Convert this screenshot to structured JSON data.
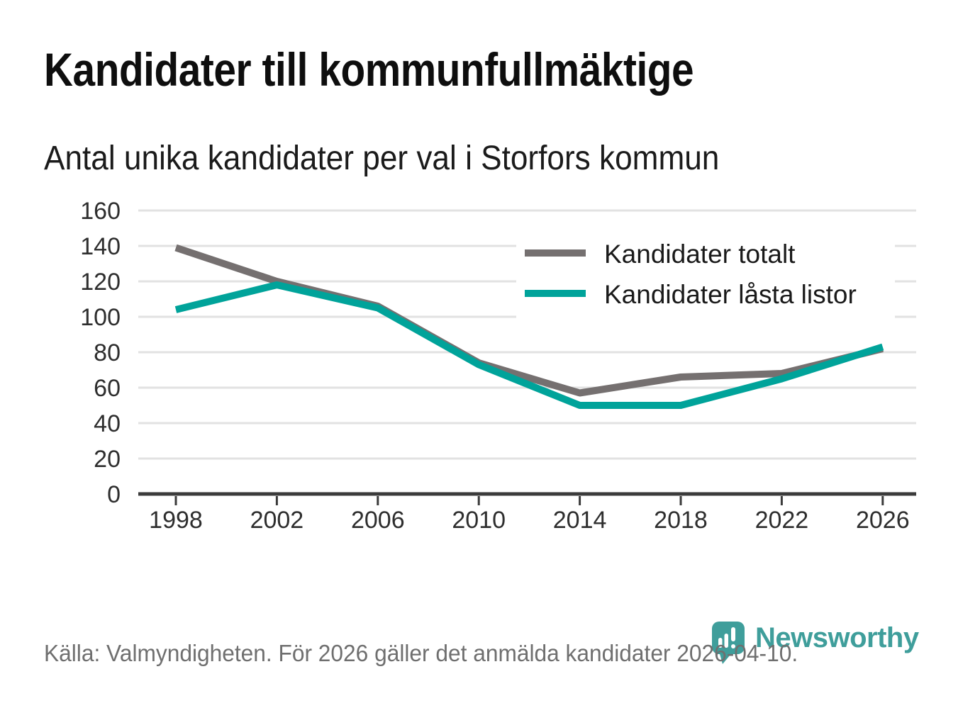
{
  "header": {
    "title": "Kandidater till kommunfullmäktige",
    "subtitle": "Antal unika kandidater per val i Storfors kommun"
  },
  "footer": {
    "source_text": "Källa: Valmyndigheten. För 2026 gäller det anmälda kandidater 2026-04-10.",
    "brand": "Newsworthy"
  },
  "colors": {
    "series_total": "#757070",
    "series_locked": "#00a39a",
    "grid": "#e2e2e2",
    "axis": "#3b3b3b",
    "tick_label": "#2e2e2e",
    "legend_text": "#1a1a1a",
    "brand_teal": "#3f9e9b",
    "footer_gray": "#6f6f6f"
  },
  "chart_data": {
    "type": "line",
    "categories": [
      "1998",
      "2002",
      "2006",
      "2010",
      "2014",
      "2018",
      "2022",
      "2026"
    ],
    "series": [
      {
        "name": "Kandidater totalt",
        "color": "#757070",
        "values": [
          139,
          120,
          106,
          74,
          57,
          66,
          68,
          82
        ]
      },
      {
        "name": "Kandidater låsta listor",
        "color": "#00a39a",
        "values": [
          104,
          118,
          105,
          73,
          50,
          50,
          65,
          83
        ]
      }
    ],
    "title": "Kandidater till kommunfullmäktige",
    "subtitle": "Antal unika kandidater per val i Storfors kommun",
    "xlabel": "",
    "ylabel": "",
    "ylim": [
      0,
      160
    ],
    "ytick_step": 20,
    "grid": true,
    "legend_position": "top-right"
  }
}
